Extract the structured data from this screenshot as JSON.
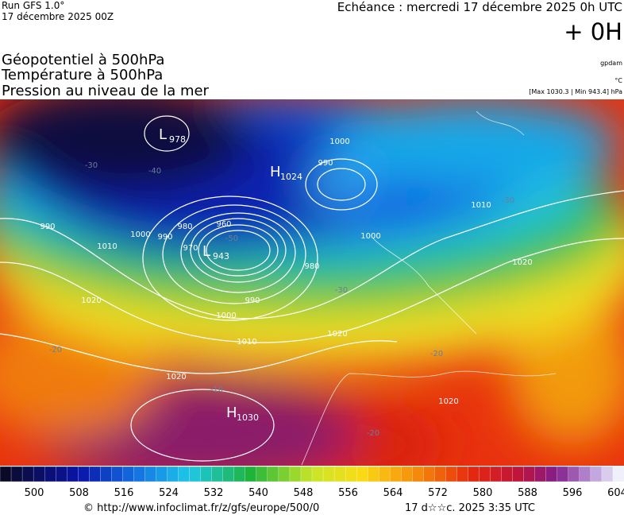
{
  "header": {
    "run": "Run GFS 1.0°",
    "run_date": "17 décembre 2025 00Z",
    "echeance": "Echéance : mercredi 17 décembre 2025 0h UTC",
    "offset": "+ 0H"
  },
  "fields": [
    "Géopotentiel à 500hPa",
    "Température à 500hPa",
    "Pression au niveau de la mer"
  ],
  "units": {
    "geopotential": "gpdam",
    "temperature": "°C",
    "pressure_range": "[Max 1030.3 | Min 943.4] hPa"
  },
  "map": {
    "pressure_centers": [
      {
        "type": "L",
        "value": "978"
      },
      {
        "type": "H",
        "value": "1024"
      },
      {
        "type": "L",
        "value": "943"
      },
      {
        "type": "H",
        "value": "1030"
      }
    ],
    "isobar_labels": [
      "990",
      "1000",
      "990",
      "980",
      "960",
      "970",
      "990",
      "1000",
      "1010",
      "1020",
      "1010",
      "1020",
      "990",
      "1000",
      "980",
      "1000",
      "1020",
      "1010",
      "1020",
      "1020"
    ],
    "temperature_labels": [
      "-30",
      "-40",
      "-50",
      "-30",
      "-20",
      "-10",
      "-20",
      "-20",
      "-30"
    ]
  },
  "colorbar": {
    "labels": [
      "500",
      "508",
      "516",
      "524",
      "532",
      "540",
      "548",
      "556",
      "564",
      "572",
      "580",
      "588",
      "596",
      "604"
    ]
  },
  "footer": {
    "source": "© http://www.infoclimat.fr/z/gfs/europe/500/0",
    "generated": "17 d☆☆c. 2025  3:35 UTC"
  }
}
